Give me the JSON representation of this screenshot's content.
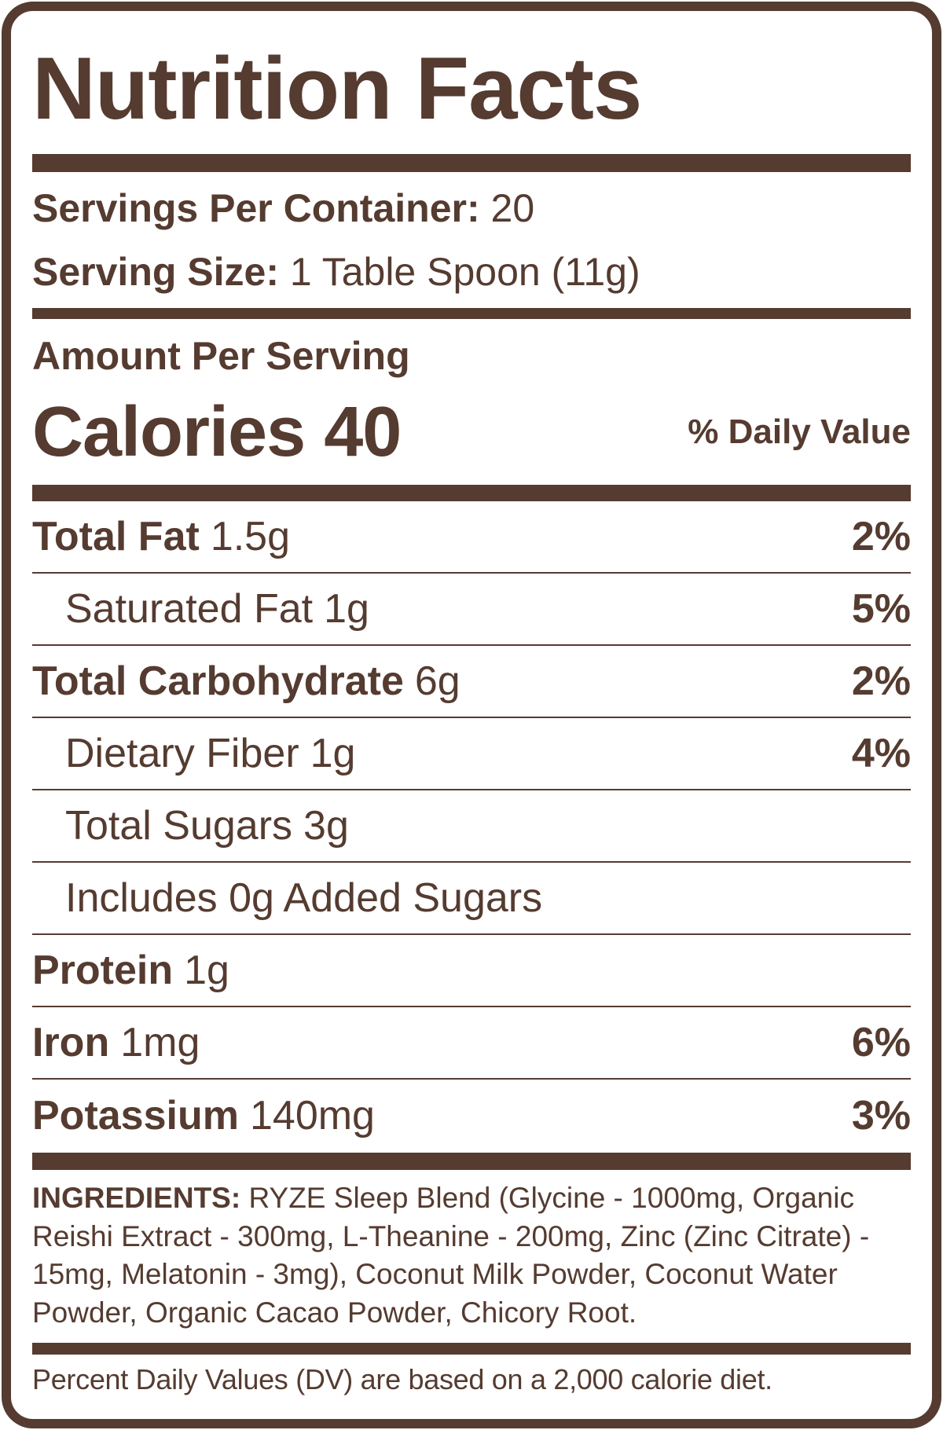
{
  "title": "Nutrition Facts",
  "servings_per_container": {
    "label": "Servings Per Container:",
    "value": "20"
  },
  "serving_size": {
    "label": "Serving Size:",
    "value": "1 Table Spoon (11g)"
  },
  "amount_per_serving": "Amount Per Serving",
  "calories": {
    "label": "Calories",
    "value": "40"
  },
  "daily_value_header": "% Daily Value",
  "nutrients": [
    {
      "name": "Total Fat",
      "amount": "1.5g",
      "dv": "2%",
      "bold": true
    },
    {
      "name": "Saturated Fat",
      "amount": "1g",
      "dv": "5%",
      "bold": false
    },
    {
      "name": "Total Carbohydrate",
      "amount": "6g",
      "dv": "2%",
      "bold": true
    },
    {
      "name": "Dietary Fiber",
      "amount": "1g",
      "dv": "4%",
      "bold": false
    },
    {
      "name": "Total Sugars",
      "amount": "3g",
      "dv": "",
      "bold": false
    },
    {
      "name": "Includes 0g Added Sugars",
      "amount": "",
      "dv": "",
      "bold": false
    },
    {
      "name": "Protein",
      "amount": "1g",
      "dv": "",
      "bold": true
    },
    {
      "name": "Iron",
      "amount": "1mg",
      "dv": "6%",
      "bold": true
    },
    {
      "name": "Potassium",
      "amount": "140mg",
      "dv": "3%",
      "bold": true
    }
  ],
  "ingredients": {
    "label": "INGREDIENTS:",
    "text": "RYZE Sleep Blend (Glycine - 1000mg, Organic Reishi Extract - 300mg, L-Theanine - 200mg, Zinc (Zinc Citrate) - 15mg, Melatonin - 3mg), Coconut Milk Powder, Coconut Water Powder, Organic Cacao Powder, Chicory Root."
  },
  "footnote": "Percent Daily Values (DV) are based on a 2,000 calorie diet.",
  "colors": {
    "ink": "#553b30",
    "background": "#ffffff"
  }
}
